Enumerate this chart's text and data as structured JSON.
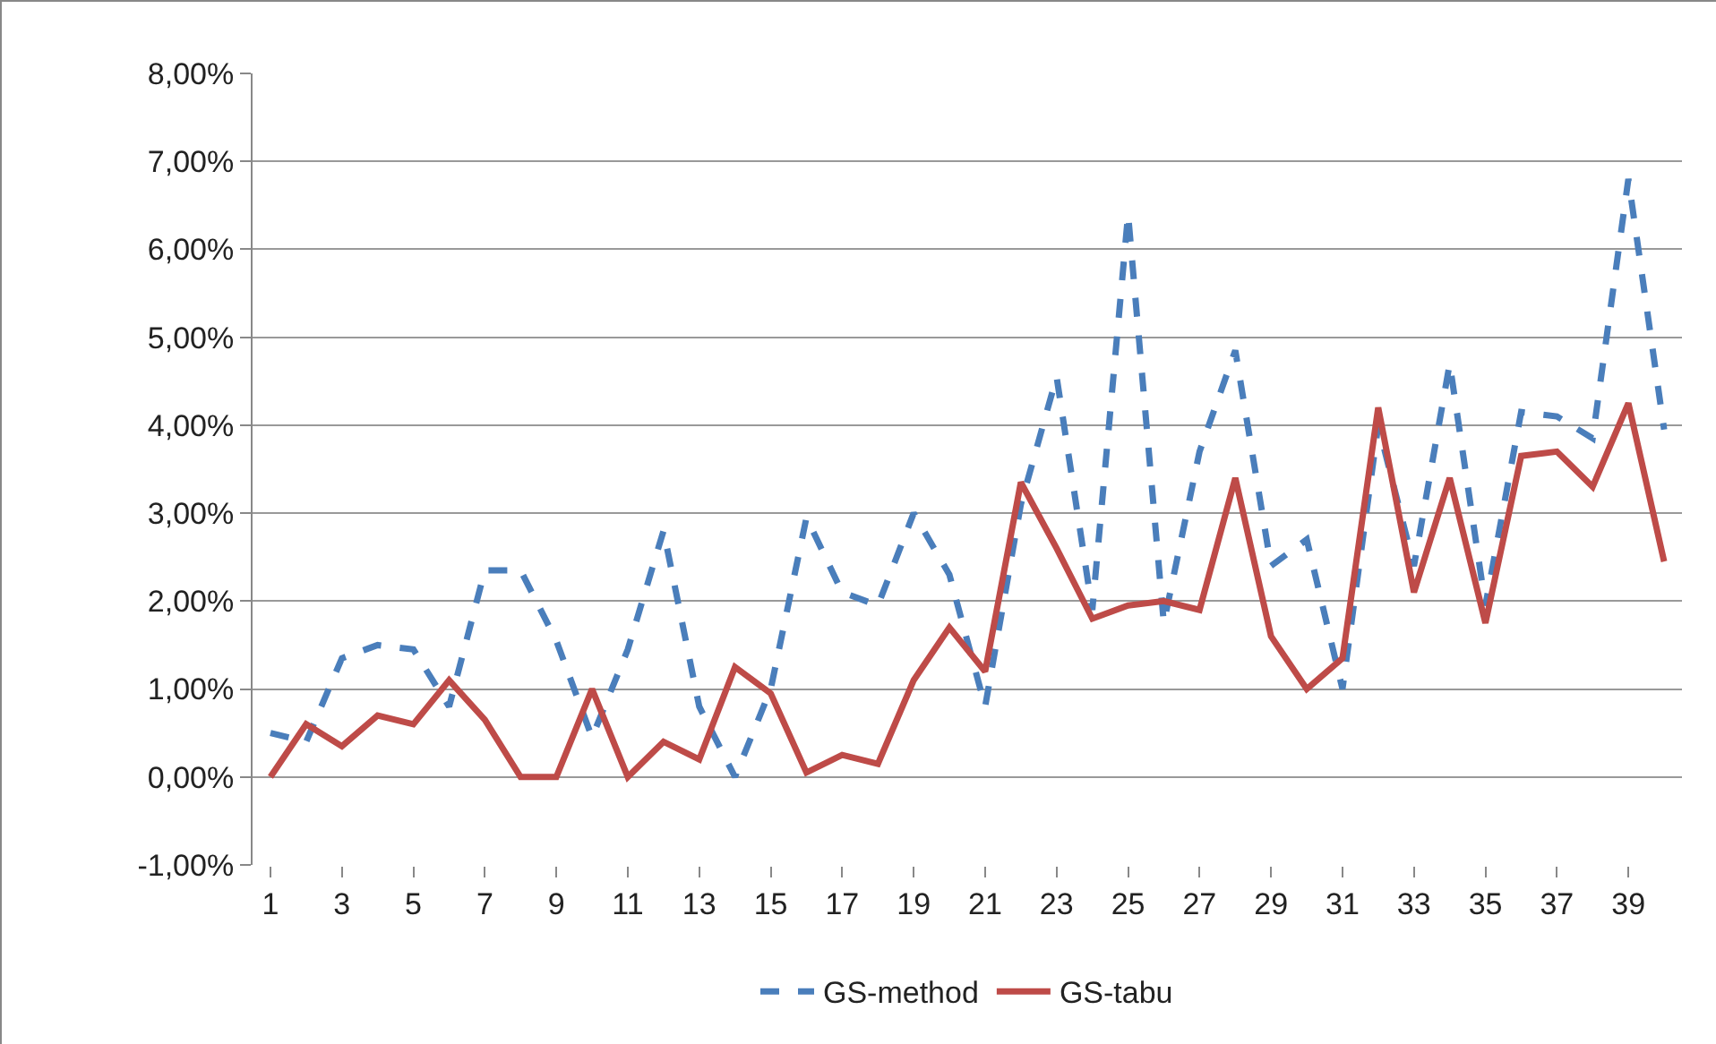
{
  "chart_data": {
    "type": "line",
    "x": [
      1,
      2,
      3,
      4,
      5,
      6,
      7,
      8,
      9,
      10,
      11,
      12,
      13,
      14,
      15,
      16,
      17,
      18,
      19,
      20,
      21,
      22,
      23,
      24,
      25,
      26,
      27,
      28,
      29,
      30,
      31,
      32,
      33,
      34,
      35,
      36,
      37,
      38,
      39,
      40
    ],
    "series": [
      {
        "name": "GS-method",
        "color": "#4a7ebb",
        "line_style": "dashed",
        "values": [
          0.5,
          0.4,
          1.35,
          1.5,
          1.45,
          0.8,
          2.35,
          2.35,
          1.55,
          0.45,
          1.45,
          2.8,
          0.8,
          0,
          1.0,
          2.95,
          2.1,
          1.95,
          3.0,
          2.3,
          0.8,
          3.1,
          4.55,
          1.9,
          6.4,
          1.75,
          3.7,
          4.85,
          2.4,
          2.7,
          1.0,
          4.0,
          2.4,
          4.7,
          1.95,
          4.15,
          4.1,
          3.85,
          6.8,
          3.95
        ]
      },
      {
        "name": "GS-tabu",
        "color": "#be4b48",
        "line_style": "solid",
        "values": [
          0,
          0.6,
          0.35,
          0.7,
          0.6,
          1.1,
          0.65,
          0,
          0,
          1.0,
          0,
          0.4,
          0.2,
          1.25,
          0.95,
          0.05,
          0.25,
          0.15,
          1.1,
          1.7,
          1.2,
          3.35,
          2.6,
          1.8,
          1.95,
          2.0,
          1.9,
          3.4,
          1.6,
          1.0,
          1.35,
          4.2,
          2.1,
          3.4,
          1.75,
          3.65,
          3.7,
          3.3,
          4.25,
          2.45
        ]
      }
    ],
    "xlim": [
      0.5,
      40.5
    ],
    "xticks": [
      1,
      3,
      5,
      7,
      9,
      11,
      13,
      15,
      17,
      19,
      21,
      23,
      25,
      27,
      29,
      31,
      33,
      35,
      37,
      39
    ],
    "ylim": [
      -1,
      8
    ],
    "yticks": [
      {
        "value": -1,
        "label": "-1,00%"
      },
      {
        "value": 0,
        "label": "0,00%"
      },
      {
        "value": 1,
        "label": "1,00%"
      },
      {
        "value": 2,
        "label": "2,00%"
      },
      {
        "value": 3,
        "label": "3,00%"
      },
      {
        "value": 4,
        "label": "4,00%"
      },
      {
        "value": 5,
        "label": "5,00%"
      },
      {
        "value": 6,
        "label": "6,00%"
      },
      {
        "value": 7,
        "label": "7,00%"
      },
      {
        "value": 8,
        "label": "8,00%"
      }
    ],
    "grid": "y",
    "legend": "bottom",
    "marker": "none"
  }
}
